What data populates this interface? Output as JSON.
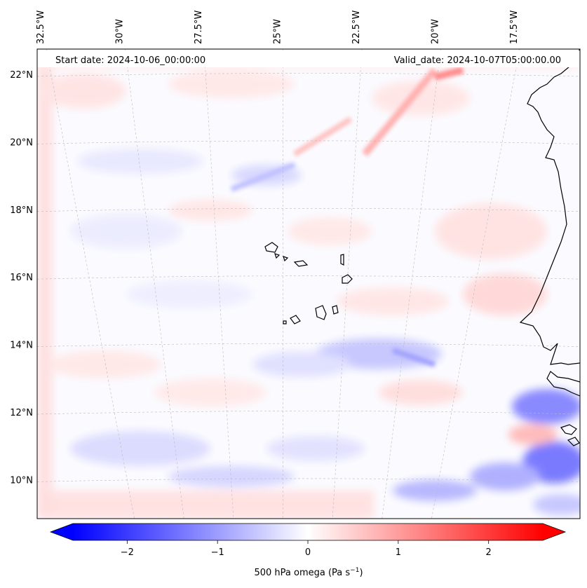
{
  "header": {
    "start_date": "Start date: 2024-10-06_00:00:00",
    "valid_date": "Valid_date: 2024-10-07T05:00:00.00"
  },
  "map": {
    "lon_labels": [
      {
        "text": "32.5°W",
        "lon": -32.5
      },
      {
        "text": "30°W",
        "lon": -30
      },
      {
        "text": "27.5°W",
        "lon": -27.5
      },
      {
        "text": "25°W",
        "lon": -25
      },
      {
        "text": "22.5°W",
        "lon": -22.5
      },
      {
        "text": "20°W",
        "lon": -20
      },
      {
        "text": "17.5°W",
        "lon": -17.5
      }
    ],
    "lat_labels": [
      {
        "text": "22°N",
        "lat": 22
      },
      {
        "text": "20°N",
        "lat": 20
      },
      {
        "text": "18°N",
        "lat": 18
      },
      {
        "text": "16°N",
        "lat": 16
      },
      {
        "text": "14°N",
        "lat": 14
      },
      {
        "text": "12°N",
        "lat": 12
      },
      {
        "text": "10°N",
        "lat": 10
      }
    ]
  },
  "colorbar": {
    "label_main": "500 hPa omega (Pa s",
    "label_exp": "−1",
    "label_close": ")",
    "range": [
      -2.6,
      2.6
    ],
    "ticks": [
      {
        "text": "−2",
        "value": -2
      },
      {
        "text": "−1",
        "value": -1
      },
      {
        "text": "0",
        "value": 0
      },
      {
        "text": "1",
        "value": 1
      },
      {
        "text": "2",
        "value": 2
      }
    ],
    "colors": {
      "low": "#0000ff",
      "mid": "#ffffff",
      "high": "#ff0000"
    }
  }
}
